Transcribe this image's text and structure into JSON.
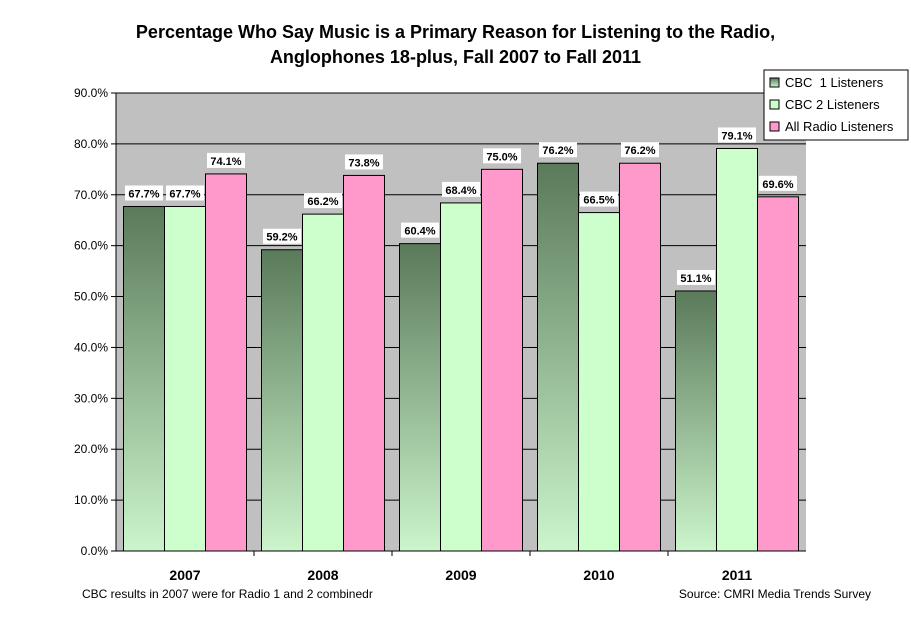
{
  "chart_data": {
    "type": "bar",
    "title_lines": [
      "Percentage Who Say Music is a Primary Reason for Listening to the Radio,",
      "Anglophones 18-plus, Fall 2007 to Fall 2011"
    ],
    "categories": [
      "2007",
      "2008",
      "2009",
      "2010",
      "2011"
    ],
    "series": [
      {
        "name": "CBC  1 Listeners",
        "values": [
          67.7,
          59.2,
          60.4,
          76.2,
          51.1
        ],
        "labels": [
          "67.7%",
          "59.2%",
          "60.4%",
          "76.2%",
          "51.1%"
        ],
        "color_top": "#5a7a5a",
        "color_bottom": "#ccf5cc"
      },
      {
        "name": "CBC 2 Listeners",
        "values": [
          67.7,
          66.2,
          68.4,
          66.5,
          79.1
        ],
        "labels": [
          "67.7%",
          "66.2%",
          "68.4%",
          "66.5%",
          "79.1%"
        ],
        "color": "#ccffcc"
      },
      {
        "name": "All Radio Listeners",
        "values": [
          74.1,
          73.8,
          75.0,
          76.2,
          69.6
        ],
        "labels": [
          "74.1%",
          "73.8%",
          "75.0%",
          "76.2%",
          "69.6%"
        ],
        "color": "#ff99cc"
      }
    ],
    "yticks": [
      "0.0%",
      "10.0%",
      "20.0%",
      "30.0%",
      "40.0%",
      "50.0%",
      "60.0%",
      "70.0%",
      "80.0%",
      "90.0%"
    ],
    "ylim": [
      0,
      90
    ],
    "grid": true,
    "plot_background": "#c0c0c0",
    "legend_position": "top-right",
    "footnote_left": "CBC results in 2007 were for Radio 1 and 2 combinedr",
    "footnote_right": "Source: CMRI Media Trends Survey"
  }
}
